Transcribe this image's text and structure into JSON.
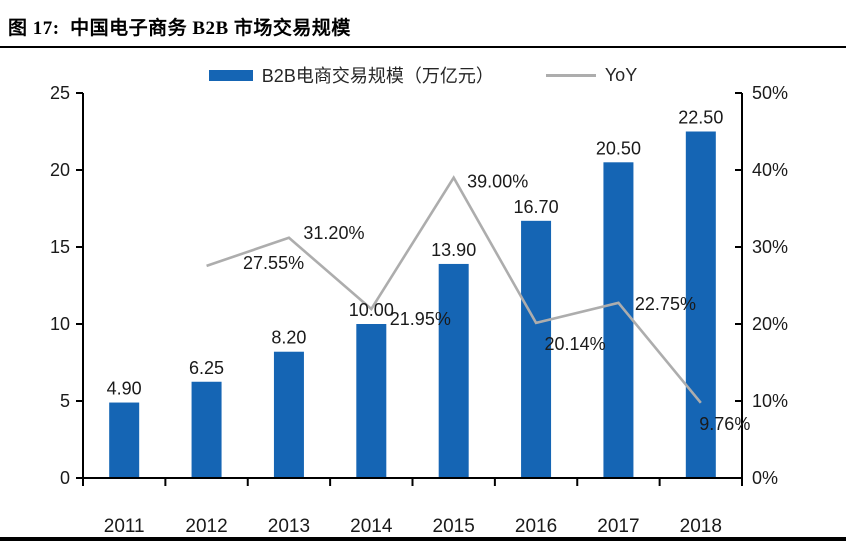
{
  "header": {
    "figure_label": "图 17:",
    "figure_title": "中国电子商务 B2B 市场交易规模"
  },
  "colors": {
    "bar": "#1565B4",
    "line": "#ADADAD",
    "axis": "#000000",
    "text": "#1a1a1a"
  },
  "chart_data": {
    "type": "bar",
    "subtype": "combo-bar-line",
    "title": "图 17:  中国电子商务 B2B 市场交易规模",
    "categories": [
      "2011",
      "2012",
      "2013",
      "2014",
      "2015",
      "2016",
      "2017",
      "2018"
    ],
    "series": [
      {
        "name": "B2B电商交易规模（万亿元）",
        "type": "bar",
        "axis": "left",
        "color": "#1565B4",
        "values": [
          4.9,
          6.25,
          8.2,
          10.0,
          13.9,
          16.7,
          20.5,
          22.5
        ],
        "labels": [
          "4.90",
          "6.25",
          "8.20",
          "10.00",
          "13.90",
          "16.70",
          "20.50",
          "22.50"
        ]
      },
      {
        "name": "YoY",
        "type": "line",
        "axis": "right",
        "color": "#ADADAD",
        "values": [
          null,
          27.55,
          31.2,
          21.95,
          39.0,
          20.14,
          22.75,
          9.76
        ],
        "labels": [
          null,
          "27.55%",
          "31.20%",
          "21.95%",
          "39.00%",
          "20.14%",
          "22.75%",
          "9.76%"
        ],
        "label_offsets": [
          null,
          [
            67,
            -3
          ],
          [
            45,
            -5
          ],
          [
            49,
            10
          ],
          [
            44,
            4
          ],
          [
            39,
            21
          ],
          [
            47,
            1
          ],
          [
            24,
            21
          ]
        ]
      }
    ],
    "left_axis": {
      "min": 0,
      "max": 25,
      "tick_values": [
        0,
        5,
        10,
        15,
        20,
        25
      ],
      "tick_labels": [
        "0",
        "5",
        "10",
        "15",
        "20",
        "25"
      ]
    },
    "right_axis": {
      "min": 0,
      "max": 50,
      "tick_values": [
        0,
        10,
        20,
        30,
        40,
        50
      ],
      "tick_labels": [
        "0%",
        "10%",
        "20%",
        "30%",
        "40%",
        "50%"
      ]
    },
    "grid": false,
    "legend_position": "top-center"
  }
}
